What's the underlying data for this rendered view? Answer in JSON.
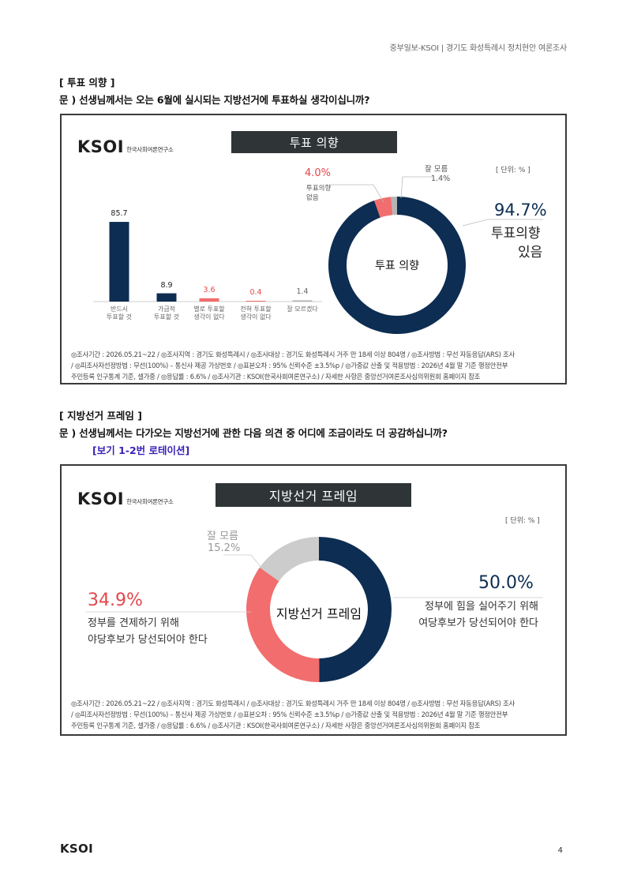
{
  "header": {
    "text": "중부일보-KSOI | 경기도 화성특례시 정치현안 여론조사"
  },
  "section1": {
    "title": "[ 투표 의향 ]",
    "question": "문 )   선생님께서는 오는 6월에 실시되는 지방선거에 투표하실 생각이십니까?",
    "logo": {
      "word": "KSOI",
      "sub": "한국사회여론연구소"
    },
    "banner": "투표 의향",
    "unit": "[ 단위: % ]",
    "donut_center": "투표 의향",
    "donut_labels": {
      "unsure_name": "잘 모름",
      "unsure_value": "1.4%",
      "no_value": "4.0%",
      "no_name_1": "투표의향",
      "no_name_2": "없음",
      "yes_value": "94.7%",
      "yes_name_1": "투표의향",
      "yes_name_2": "있음"
    },
    "bars": [
      {
        "label_1": "반드시",
        "label_2": "투표할 것",
        "value_text": "85.7"
      },
      {
        "label_1": "가급적",
        "label_2": "투표할 것",
        "value_text": "8.9"
      },
      {
        "label_1": "별로 투표할",
        "label_2": "생각이 없다",
        "value_text": "3.6"
      },
      {
        "label_1": "전혀 투표할",
        "label_2": "생각이 없다",
        "value_text": "0.4"
      },
      {
        "label_1": "잘 모르겠다",
        "label_2": "",
        "value_text": "1.4"
      }
    ],
    "footnote": [
      "◎조사기간 : 2026.05.21~22 / ◎조사지역 : 경기도 화성특례시 / ◎조사대상 : 경기도 화성특례시 거주 만 18세 이상 804명 / ◎조사방법 : 무선 자동응답(ARS) 조사",
      "/ ◎피조사자선정방법 : 무선(100%) – 통신사 제공 가상번호 / ◎표본오차 : 95% 신뢰수준 ±3.5%p / ◎가중값 산출 및 적용방법 : 2026년 4월 말 기준 행정안전부",
      "주민등록 인구통계 기준, 셀가중 / ◎응답률 : 6.6% / ◎조사기관 : KSOI(한국사회여론연구소) / 자세한 사항은 중앙선거여론조사심의위원회 홈페이지 참조"
    ]
  },
  "section2": {
    "title": "[ 지방선거 프레임 ]",
    "question": "문 )   선생님께서는 다가오는 지방선거에 관한 다음 의견 중 어디에 조금이라도 더 공감하십니까?",
    "rotation": "[보기 1-2번 로테이션]",
    "logo": {
      "word": "KSOI",
      "sub": "한국사회여론연구소"
    },
    "banner": "지방선거 프레임",
    "unit": "[ 단위: % ]",
    "donut_center": "지방선거 프레임",
    "labels": {
      "unsure_name": "잘 모름",
      "unsure_value": "15.2%",
      "left_value": "34.9%",
      "left_1": "정부를 견제하기 위해",
      "left_2": "야당후보가 당선되어야 한다",
      "right_value": "50.0%",
      "right_1": "정부에 힘을 실어주기 위해",
      "right_2": "여당후보가 당선되어야 한다"
    },
    "footnote": [
      "◎조사기간 : 2026.05.21~22 / ◎조사지역 : 경기도 화성특례시 / ◎조사대상 : 경기도 화성특례시 거주 만 18세 이상 804명 / ◎조사방법 : 무선 자동응답(ARS) 조사",
      "/ ◎피조사자선정방법 : 무선(100%) – 통신사 제공 가상번호 / ◎표본오차 : 95% 신뢰수준 ±3.5%p / ◎가중값 산출 및 적용방법 : 2026년 4월 말 기준 행정안전부",
      "주민등록 인구통계 기준, 셀가중 / ◎응답률 : 6.6% / ◎조사기관 : KSOI(한국사회여론연구소) / 자세한 사항은 중앙선거여론조사심의위원회 홈페이지 참조"
    ]
  },
  "colors": {
    "navy": "#0d2d52",
    "red": "#f26d6d",
    "gray": "#cccccc",
    "light_gray": "#b5b5b5",
    "banner": "#2f3437",
    "purple": "#3a1fb8"
  },
  "chart_data": [
    {
      "type": "bar",
      "categories": [
        "반드시 투표할 것",
        "가급적 투표할 것",
        "별로 투표할 생각이 없다",
        "전혀 투표할 생각이 없다",
        "잘 모르겠다"
      ],
      "values": [
        85.7,
        8.9,
        3.6,
        0.4,
        1.4
      ],
      "colors": [
        "#0d2d52",
        "#0d2d52",
        "#f26d6d",
        "#f26d6d",
        "#b5b5b5"
      ],
      "ylim": [
        0,
        100
      ]
    },
    {
      "type": "pie",
      "title": "투표 의향",
      "categories": [
        "투표의향 있음",
        "투표의향 없음",
        "잘 모름"
      ],
      "values": [
        94.7,
        4.0,
        1.4
      ],
      "colors": [
        "#0d2d52",
        "#f26d6d",
        "#b5b5b5"
      ]
    },
    {
      "type": "pie",
      "title": "지방선거 프레임",
      "categories": [
        "정부에 힘을 실어주기 위해 여당후보가 당선되어야 한다",
        "정부를 견제하기 위해 야당후보가 당선되어야 한다",
        "잘 모름"
      ],
      "values": [
        50.0,
        34.9,
        15.2
      ],
      "colors": [
        "#0d2d52",
        "#f26d6d",
        "#cccccc"
      ]
    }
  ],
  "footer": {
    "logo": "KSOI",
    "page": "4"
  }
}
